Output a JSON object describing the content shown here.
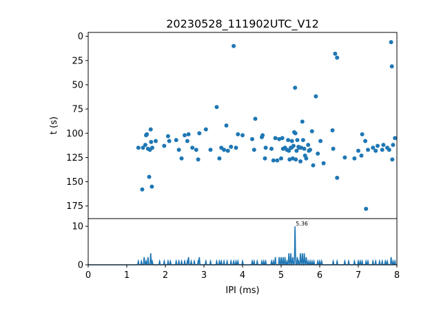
{
  "chart_data": [
    {
      "type": "scatter",
      "title": "20230528_111902UTC_V12",
      "xlabel": "",
      "ylabel": "t (s)",
      "xlim": [
        0,
        8
      ],
      "ylim": [
        188,
        -4
      ],
      "y_inverted": true,
      "yticks": [
        0,
        25,
        50,
        75,
        100,
        125,
        150,
        175
      ],
      "grid": false,
      "color": "#1f77b4",
      "series": [
        {
          "points": [
            [
              1.3,
              115
            ],
            [
              1.4,
              158
            ],
            [
              1.42,
              115
            ],
            [
              1.48,
              112
            ],
            [
              1.5,
              102
            ],
            [
              1.52,
              101
            ],
            [
              1.55,
              116
            ],
            [
              1.58,
              145
            ],
            [
              1.6,
              117
            ],
            [
              1.62,
              96
            ],
            [
              1.63,
              109
            ],
            [
              1.65,
              155
            ],
            [
              1.66,
              115
            ],
            [
              1.75,
              108
            ],
            [
              1.97,
              113
            ],
            [
              2.07,
              103
            ],
            [
              2.1,
              108
            ],
            [
              2.28,
              107
            ],
            [
              2.35,
              117
            ],
            [
              2.42,
              126
            ],
            [
              2.5,
              102
            ],
            [
              2.57,
              108
            ],
            [
              2.6,
              101
            ],
            [
              2.7,
              115
            ],
            [
              2.8,
              117
            ],
            [
              2.85,
              127
            ],
            [
              2.88,
              100
            ],
            [
              3.05,
              96
            ],
            [
              3.17,
              117
            ],
            [
              3.33,
              73
            ],
            [
              3.4,
              126
            ],
            [
              3.45,
              115
            ],
            [
              3.52,
              117
            ],
            [
              3.58,
              92
            ],
            [
              3.62,
              118
            ],
            [
              3.7,
              114
            ],
            [
              3.77,
              10
            ],
            [
              3.83,
              115
            ],
            [
              3.88,
              101
            ],
            [
              4.0,
              102
            ],
            [
              4.25,
              106
            ],
            [
              4.3,
              117
            ],
            [
              4.33,
              85
            ],
            [
              4.5,
              104
            ],
            [
              4.52,
              102
            ],
            [
              4.58,
              126
            ],
            [
              4.6,
              115
            ],
            [
              4.75,
              116
            ],
            [
              4.8,
              128
            ],
            [
              4.85,
              105
            ],
            [
              4.9,
              128
            ],
            [
              4.95,
              106
            ],
            [
              5.0,
              126
            ],
            [
              5.03,
              105
            ],
            [
              5.05,
              116
            ],
            [
              5.1,
              115
            ],
            [
              5.15,
              117
            ],
            [
              5.18,
              107
            ],
            [
              5.2,
              118
            ],
            [
              5.22,
              127
            ],
            [
              5.25,
              115
            ],
            [
              5.27,
              115
            ],
            [
              5.28,
              108
            ],
            [
              5.3,
              126
            ],
            [
              5.32,
              113
            ],
            [
              5.34,
              99
            ],
            [
              5.36,
              53
            ],
            [
              5.37,
              100
            ],
            [
              5.38,
              127
            ],
            [
              5.4,
              118
            ],
            [
              5.42,
              107
            ],
            [
              5.45,
              114
            ],
            [
              5.47,
              115
            ],
            [
              5.5,
              129
            ],
            [
              5.52,
              115
            ],
            [
              5.55,
              88
            ],
            [
              5.57,
              107
            ],
            [
              5.6,
              116
            ],
            [
              5.62,
              123
            ],
            [
              5.65,
              126
            ],
            [
              5.7,
              112
            ],
            [
              5.72,
              118
            ],
            [
              5.75,
              117
            ],
            [
              5.8,
              98
            ],
            [
              5.83,
              133
            ],
            [
              5.9,
              62
            ],
            [
              5.95,
              121
            ],
            [
              6.02,
              108
            ],
            [
              6.1,
              131
            ],
            [
              6.33,
              97
            ],
            [
              6.35,
              116
            ],
            [
              6.4,
              18
            ],
            [
              6.45,
              22
            ],
            [
              6.45,
              146
            ],
            [
              6.65,
              125
            ],
            [
              6.9,
              126
            ],
            [
              7.0,
              118
            ],
            [
              7.08,
              123
            ],
            [
              7.1,
              101
            ],
            [
              7.18,
              108
            ],
            [
              7.2,
              178
            ],
            [
              7.25,
              117
            ],
            [
              7.38,
              115
            ],
            [
              7.45,
              118
            ],
            [
              7.5,
              113
            ],
            [
              7.62,
              117
            ],
            [
              7.65,
              112
            ],
            [
              7.75,
              115
            ],
            [
              7.8,
              117
            ],
            [
              7.85,
              6
            ],
            [
              7.87,
              31
            ],
            [
              7.88,
              127
            ],
            [
              7.9,
              112
            ],
            [
              7.95,
              105
            ]
          ]
        }
      ]
    },
    {
      "type": "line",
      "title": "",
      "xlabel": "IPI (ms)",
      "ylabel": "",
      "xlim": [
        0,
        8
      ],
      "ylim": [
        0,
        12
      ],
      "xticks": [
        0,
        1,
        2,
        3,
        4,
        5,
        6,
        7,
        8
      ],
      "yticks": [
        0,
        10
      ],
      "grid": false,
      "color": "#1f77b4",
      "peak_annotation": {
        "x": 5.36,
        "y": 10,
        "label": "5.36"
      },
      "series": [
        {
          "peaks": [
            [
              1.3,
              1
            ],
            [
              1.38,
              1
            ],
            [
              1.45,
              2
            ],
            [
              1.5,
              1
            ],
            [
              1.55,
              2
            ],
            [
              1.62,
              3
            ],
            [
              1.66,
              1
            ],
            [
              1.85,
              1
            ],
            [
              1.97,
              1
            ],
            [
              2.07,
              1
            ],
            [
              2.13,
              1
            ],
            [
              2.28,
              1
            ],
            [
              2.35,
              1
            ],
            [
              2.42,
              1
            ],
            [
              2.5,
              1
            ],
            [
              2.57,
              1
            ],
            [
              2.6,
              2
            ],
            [
              2.67,
              1
            ],
            [
              2.75,
              1
            ],
            [
              2.85,
              1
            ],
            [
              2.88,
              2
            ],
            [
              3.05,
              1
            ],
            [
              3.17,
              1
            ],
            [
              3.33,
              1
            ],
            [
              3.4,
              1
            ],
            [
              3.45,
              1
            ],
            [
              3.52,
              1
            ],
            [
              3.6,
              1
            ],
            [
              3.7,
              1
            ],
            [
              3.77,
              1
            ],
            [
              3.83,
              1
            ],
            [
              3.88,
              1
            ],
            [
              4.0,
              1
            ],
            [
              4.25,
              1
            ],
            [
              4.3,
              1
            ],
            [
              4.38,
              1
            ],
            [
              4.5,
              1
            ],
            [
              4.55,
              1
            ],
            [
              4.6,
              1
            ],
            [
              4.75,
              1
            ],
            [
              4.8,
              1
            ],
            [
              4.85,
              2
            ],
            [
              4.95,
              2
            ],
            [
              5.0,
              2
            ],
            [
              5.05,
              2
            ],
            [
              5.1,
              2
            ],
            [
              5.15,
              1
            ],
            [
              5.2,
              3
            ],
            [
              5.25,
              3
            ],
            [
              5.3,
              2
            ],
            [
              5.36,
              10
            ],
            [
              5.42,
              2
            ],
            [
              5.45,
              1
            ],
            [
              5.5,
              3
            ],
            [
              5.55,
              3
            ],
            [
              5.6,
              3
            ],
            [
              5.65,
              2
            ],
            [
              5.7,
              1
            ],
            [
              5.75,
              1
            ],
            [
              5.8,
              1
            ],
            [
              5.85,
              1
            ],
            [
              5.95,
              1
            ],
            [
              6.0,
              1
            ],
            [
              6.05,
              1
            ],
            [
              6.35,
              1
            ],
            [
              6.45,
              1
            ],
            [
              6.65,
              1
            ],
            [
              6.75,
              1
            ],
            [
              6.9,
              1
            ],
            [
              7.0,
              1
            ],
            [
              7.05,
              1
            ],
            [
              7.1,
              1
            ],
            [
              7.2,
              1
            ],
            [
              7.25,
              1
            ],
            [
              7.38,
              1
            ],
            [
              7.45,
              1
            ],
            [
              7.55,
              1
            ],
            [
              7.62,
              1
            ],
            [
              7.7,
              1
            ],
            [
              7.75,
              1
            ],
            [
              7.85,
              2
            ],
            [
              7.9,
              1
            ],
            [
              7.95,
              1
            ]
          ]
        }
      ]
    }
  ]
}
